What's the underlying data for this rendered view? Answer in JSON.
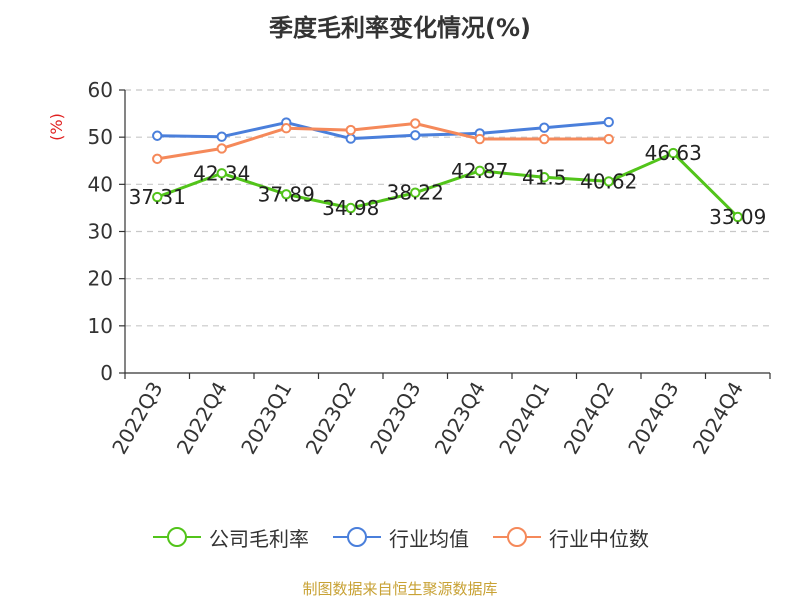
{
  "footer": "制图数据来自恒生聚源数据库",
  "chart_data": {
    "type": "line",
    "title": "季度毛利率变化情况(%)",
    "ylabel": "(%)",
    "xlabel": "",
    "categories": [
      "2022Q3",
      "2022Q4",
      "2023Q1",
      "2023Q2",
      "2023Q3",
      "2023Q4",
      "2024Q1",
      "2024Q2",
      "2024Q3",
      "2024Q4"
    ],
    "ylim": [
      0,
      60
    ],
    "yticks": [
      0,
      10,
      20,
      30,
      40,
      50,
      60
    ],
    "grid": true,
    "legend_position": "bottom",
    "series": [
      {
        "name": "公司毛利率",
        "color": "#52c41a",
        "values": [
          37.31,
          42.34,
          37.89,
          34.98,
          38.22,
          42.87,
          41.5,
          40.62,
          46.63,
          33.09
        ],
        "labels": [
          "37.31",
          "42.34",
          "37.89",
          "34.98",
          "38.22",
          "42.87",
          "41.5",
          "40.62",
          "46.63",
          "33.09"
        ]
      },
      {
        "name": "行业均值",
        "color": "#4a7fdb",
        "values": [
          50.3,
          50.1,
          53.1,
          49.7,
          50.4,
          50.8,
          52.0,
          53.2,
          null,
          null
        ]
      },
      {
        "name": "行业中位数",
        "color": "#f5895a",
        "values": [
          45.4,
          47.6,
          51.9,
          51.5,
          52.9,
          49.6,
          49.6,
          49.6,
          null,
          null
        ]
      }
    ]
  }
}
